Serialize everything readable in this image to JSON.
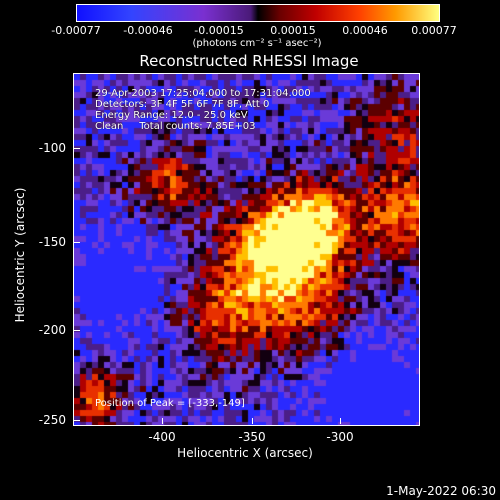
{
  "colorbar": {
    "ticks": [
      "-0.00077",
      "-0.00046",
      "-0.00015",
      "0.00015",
      "0.00046",
      "0.00077"
    ],
    "units": "(photons cm⁻² s⁻¹ asec⁻²)"
  },
  "title": "Reconstructed RHESSI Image",
  "axes": {
    "xlabel": "Heliocentric X (arcsec)",
    "ylabel": "Heliocentric Y (arcsec)",
    "xticks": [
      "-400",
      "-350",
      "-300"
    ],
    "yticks": [
      "-100",
      "-150",
      "-200",
      "-250"
    ]
  },
  "annotation": {
    "time": "29-Apr-2003 17:25:04.000 to 17:31:04.000",
    "detectors": "Detectors: 3F 4F 5F 6F 7F 8F, Att 0",
    "energy": "Energy Range: 12.0 - 25.0 keV",
    "clean": "Clean     Total counts: 7.85E+03",
    "peak": "Position of Peak = [-333,-149]"
  },
  "footer_date": "1-May-2022 06:30",
  "colors": {
    "background": "#000000",
    "hot": "#ffff80",
    "cold": "#1010ff"
  }
}
